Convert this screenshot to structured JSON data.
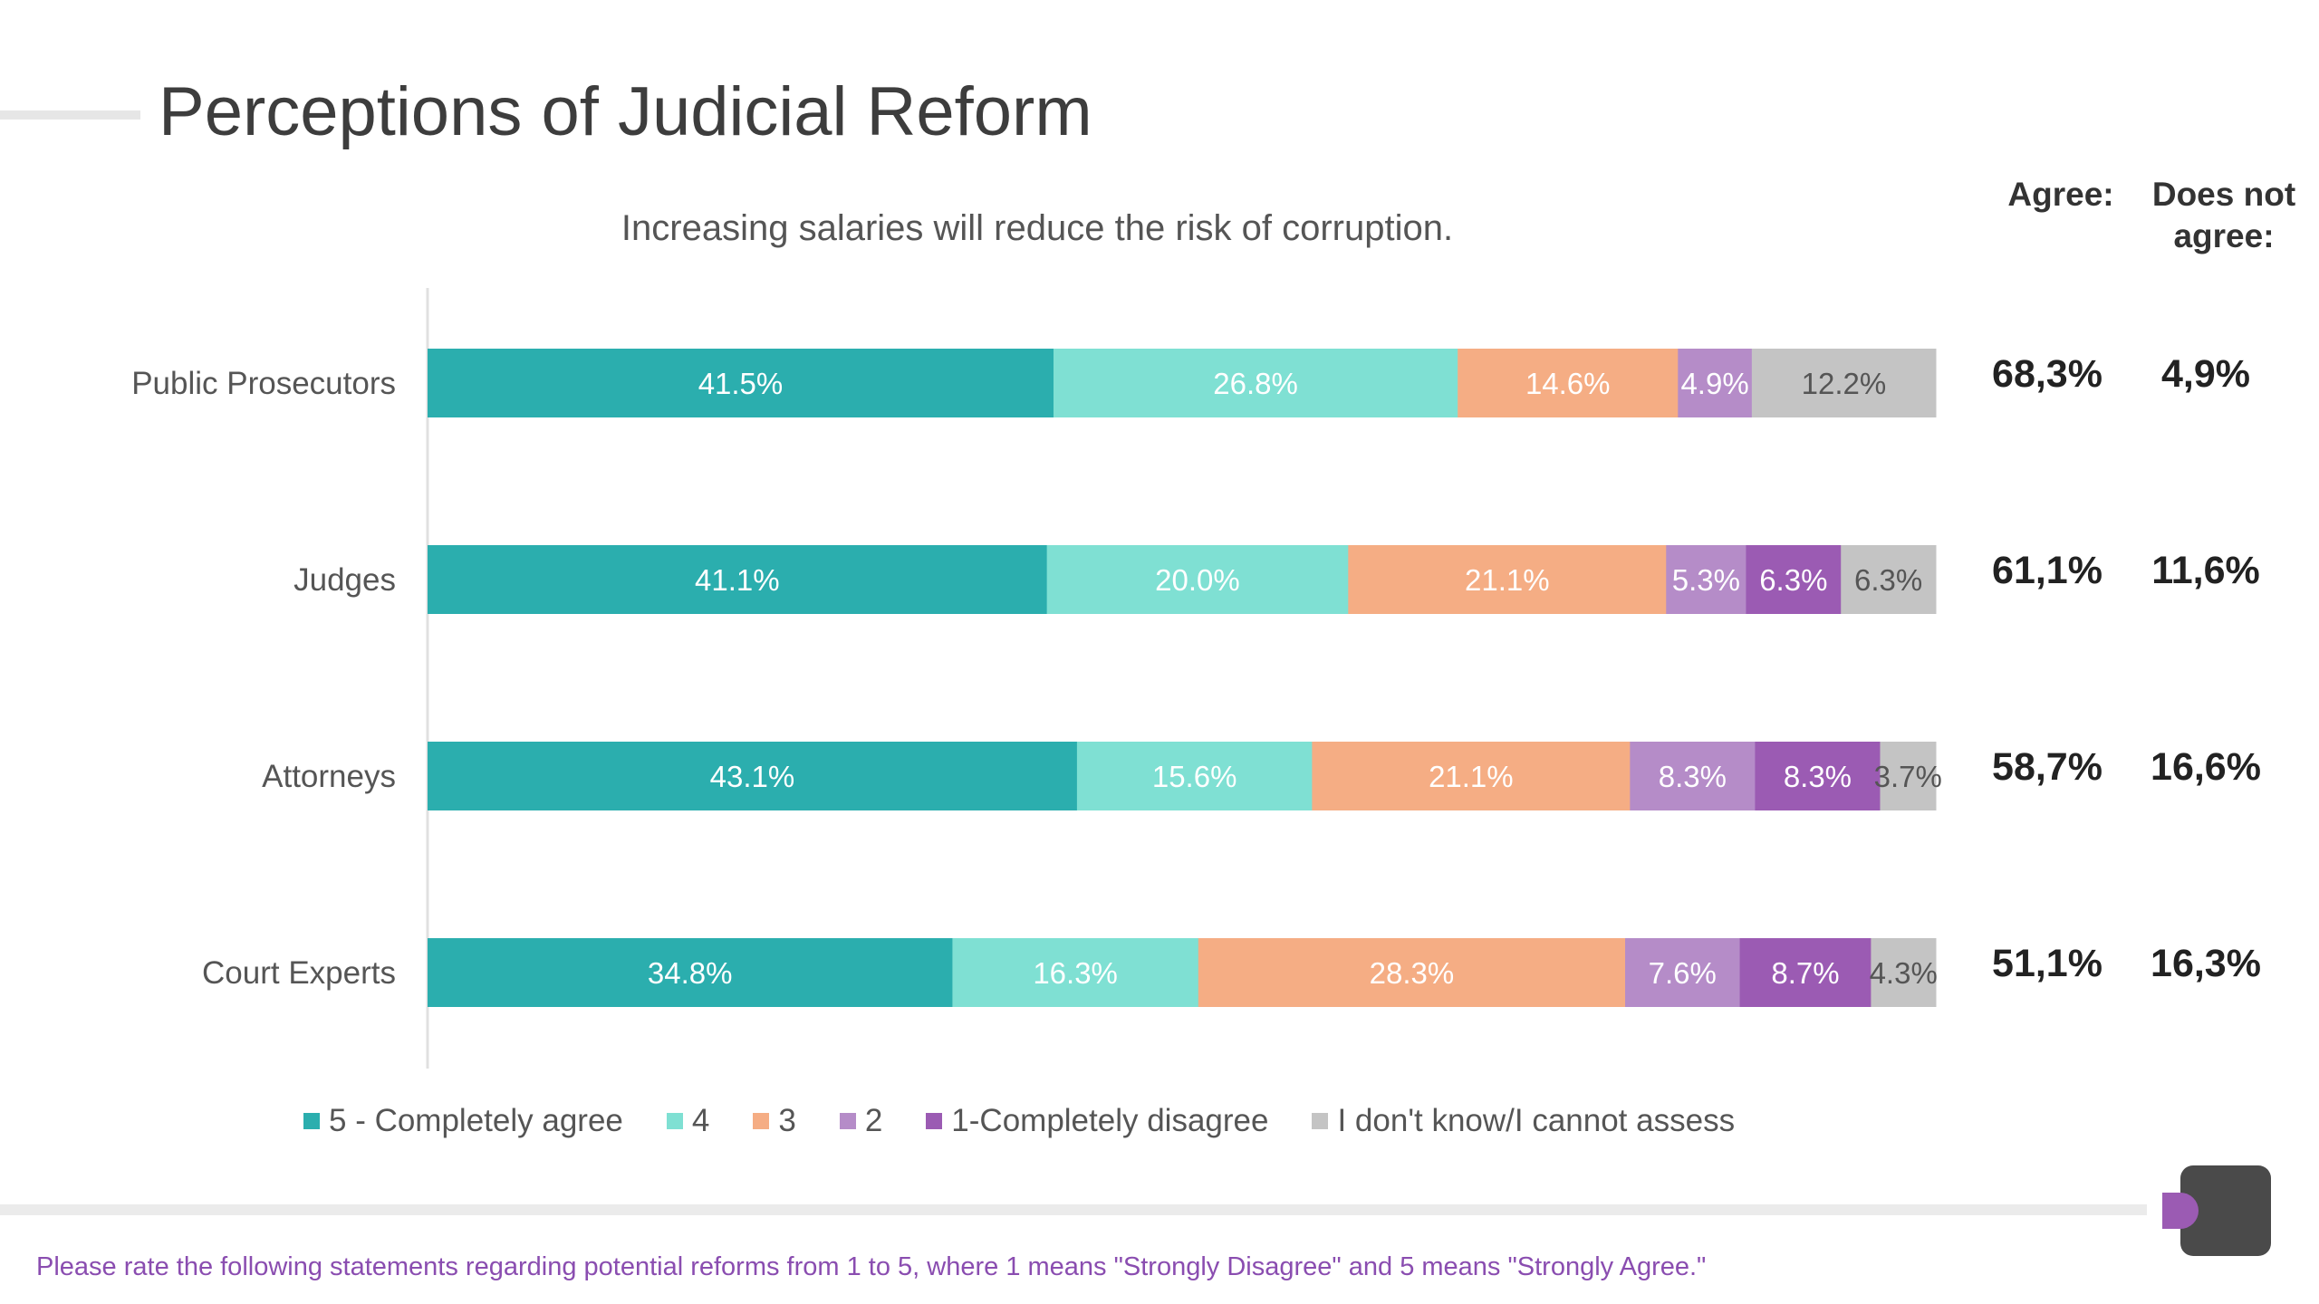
{
  "page": {
    "title": "Perceptions of Judicial Reform",
    "footnote": "Please rate the following statements regarding potential reforms from 1 to 5, where 1 means \"Strongly Disagree\" and 5 means \"Strongly Agree.\"",
    "headers": {
      "agree": "Agree:",
      "not_agree_line1": "Does not",
      "not_agree_line2": "agree:"
    }
  },
  "chart_data": {
    "type": "bar",
    "orientation": "horizontal",
    "stacked": true,
    "title": "Increasing salaries will reduce the risk of corruption.",
    "categories": [
      "Public Prosecutors",
      "Judges",
      "Attorneys",
      "Court Experts"
    ],
    "series": [
      {
        "name": "5 - Completely agree",
        "color": "#2baeae",
        "values": [
          41.5,
          41.1,
          43.1,
          34.8
        ],
        "labels": [
          "41.5%",
          "41.1%",
          "43.1%",
          "34.8%"
        ]
      },
      {
        "name": "4",
        "color": "#7fe0d3",
        "values": [
          26.8,
          20.0,
          15.6,
          16.3
        ],
        "labels": [
          "26.8%",
          "20.0%",
          "15.6%",
          "16.3%"
        ]
      },
      {
        "name": "3",
        "color": "#f5ad84",
        "values": [
          14.6,
          21.1,
          21.1,
          28.3
        ],
        "labels": [
          "14.6%",
          "21.1%",
          "21.1%",
          "28.3%"
        ]
      },
      {
        "name": "2",
        "color": "#b58cc8",
        "values": [
          4.9,
          5.3,
          8.3,
          7.6
        ],
        "labels": [
          "4.9%",
          "5.3%",
          "8.3%",
          "7.6%"
        ]
      },
      {
        "name": "1-Completely disagree",
        "color": "#9b5bb3",
        "values": [
          0,
          6.3,
          8.3,
          8.7
        ],
        "labels": [
          "",
          "6.3%",
          "8.3%",
          "8.7%"
        ]
      },
      {
        "name": "I don't know/I cannot assess",
        "color": "#c4c4c4",
        "values": [
          12.2,
          6.3,
          3.7,
          4.3
        ],
        "labels": [
          "12.2%",
          "6.3%",
          "3.7%",
          "4.3%"
        ]
      }
    ],
    "summary": {
      "agree": [
        "68,3%",
        "61,1%",
        "58,7%",
        "51,1%"
      ],
      "not_agree": [
        "4,9%",
        "11,6%",
        "16,6%",
        "16,3%"
      ]
    },
    "legend_position": "bottom",
    "grid": false
  }
}
